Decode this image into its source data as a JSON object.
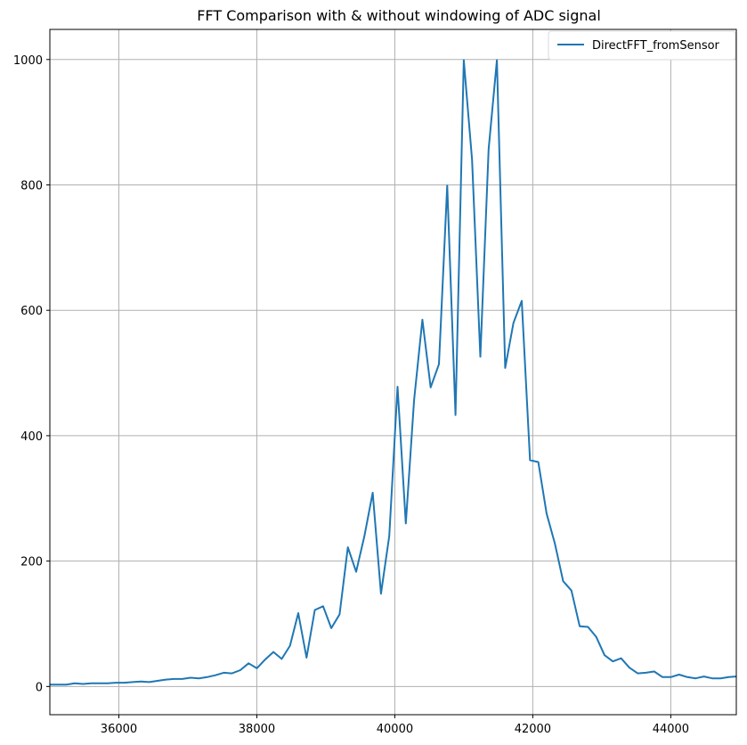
{
  "chart_data": {
    "type": "line",
    "title": "FFT Comparison with & without windowing of ADC signal",
    "xlabel": "",
    "ylabel": "",
    "xlim": [
      35000,
      44950
    ],
    "ylim": [
      -45,
      1048
    ],
    "xticks": [
      36000,
      38000,
      40000,
      42000,
      44000
    ],
    "yticks": [
      0,
      200,
      400,
      600,
      800,
      1000
    ],
    "grid": true,
    "legend_position": "top-right",
    "series": [
      {
        "name": "DirectFFT_fromSensor",
        "color": "#1f77b4",
        "x": [
          35000,
          35120,
          35240,
          35360,
          35480,
          35600,
          35720,
          35840,
          35960,
          36080,
          36200,
          36320,
          36440,
          36560,
          36680,
          36800,
          36920,
          37040,
          37160,
          37280,
          37400,
          37520,
          37640,
          37760,
          37880,
          38000,
          38120,
          38240,
          38360,
          38480,
          38600,
          38720,
          38840,
          38960,
          39080,
          39200,
          39320,
          39440,
          39560,
          39680,
          39800,
          39920,
          40040,
          40160,
          40280,
          40400,
          40520,
          40640,
          40760,
          40880,
          41000,
          41120,
          41240,
          41360,
          41480,
          41600,
          41720,
          41840,
          41960,
          42080,
          42200,
          42320,
          42440,
          42560,
          42680,
          42800,
          42920,
          43040,
          43160,
          43280,
          43400,
          43520,
          43640,
          43760,
          43880,
          44000,
          44120,
          44240,
          44360,
          44480,
          44600,
          44720,
          44840,
          44950
        ],
        "y": [
          3,
          3,
          3,
          5,
          4,
          5,
          5,
          5,
          6,
          6,
          7,
          8,
          7,
          9,
          11,
          12,
          12,
          14,
          13,
          15,
          18,
          22,
          21,
          26,
          37,
          29,
          43,
          55,
          44,
          65,
          117,
          46,
          122,
          128,
          93,
          115,
          222,
          183,
          240,
          309,
          148,
          240,
          478,
          260,
          457,
          585,
          477,
          514,
          799,
          433,
          999,
          840,
          526,
          857,
          999,
          508,
          580,
          615,
          361,
          358,
          276,
          228,
          168,
          153,
          96,
          95,
          79,
          50,
          40,
          45,
          30,
          21,
          22,
          24,
          15,
          15,
          19,
          15,
          13,
          16,
          13,
          13,
          15,
          16
        ]
      }
    ]
  }
}
